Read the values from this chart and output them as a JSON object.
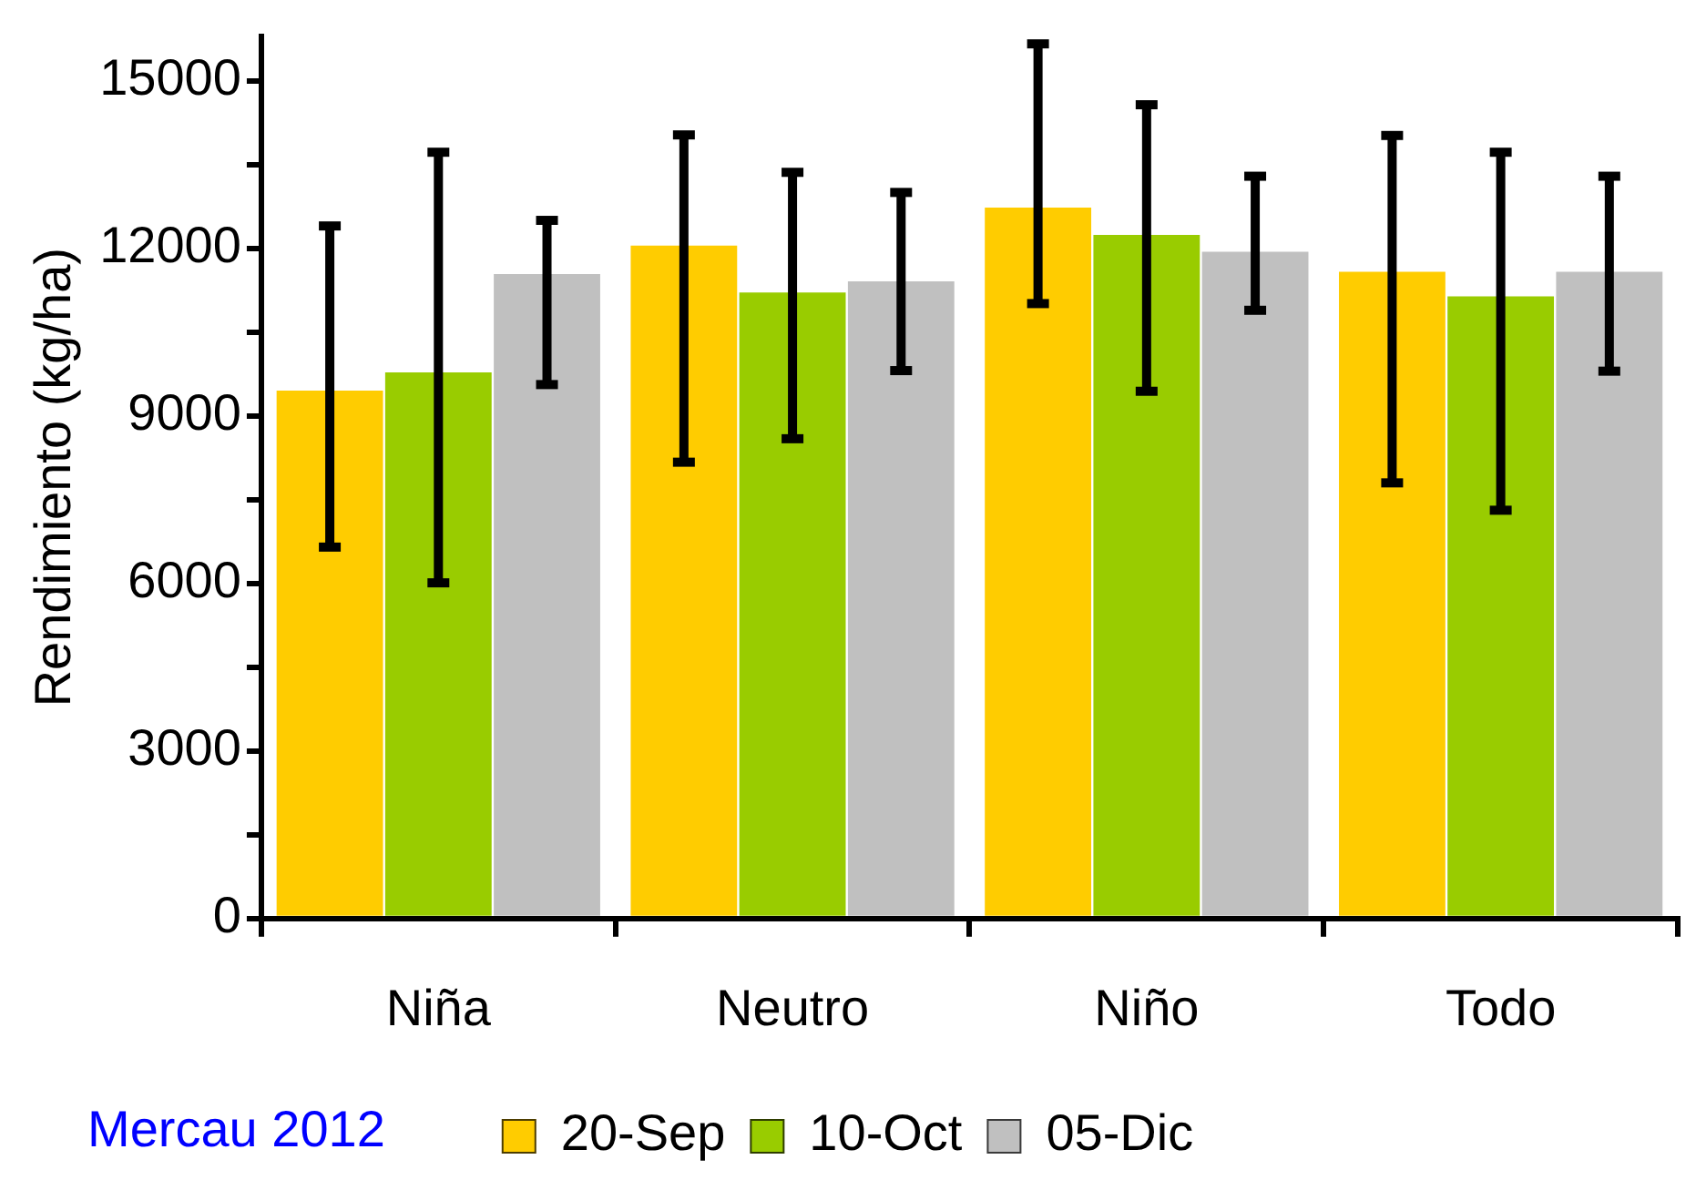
{
  "chart_data": {
    "type": "bar",
    "ylabel": "Rendimiento (kg/ha)",
    "categories": [
      "Niña",
      "Neutro",
      "Niño",
      "Todo"
    ],
    "series": [
      {
        "name": "20-Sep",
        "color": "#ffcc00",
        "values": [
          9450,
          12050,
          12730,
          11580
        ],
        "errors": [
          [
            6650,
            12400
          ],
          [
            8170,
            14030
          ],
          [
            11010,
            15660
          ],
          [
            7800,
            14020
          ]
        ]
      },
      {
        "name": "10-Oct",
        "color": "#99cc00",
        "values": [
          9780,
          11210,
          12240,
          11140
        ],
        "errors": [
          [
            6010,
            13720
          ],
          [
            8590,
            13360
          ],
          [
            9440,
            14570
          ],
          [
            7310,
            13720
          ]
        ]
      },
      {
        "name": "05-Dic",
        "color": "#c0c0c0",
        "values": [
          11540,
          11410,
          11940,
          11580
        ],
        "errors": [
          [
            9560,
            12500
          ],
          [
            9810,
            13000
          ],
          [
            10890,
            13290
          ],
          [
            9800,
            13290
          ]
        ]
      }
    ],
    "ylim": [
      0,
      15800
    ],
    "yticks": [
      0,
      {
        "value": 1500,
        "label": null
      },
      3000,
      {
        "value": 4500,
        "label": null
      },
      6000,
      {
        "value": 7500,
        "label": null
      },
      9000,
      {
        "value": 10500,
        "label": null
      },
      12000,
      {
        "value": 13500,
        "label": null
      },
      15000
    ],
    "grid": false,
    "legend": "bottom",
    "annotations": [
      "Mercau 2012"
    ]
  }
}
